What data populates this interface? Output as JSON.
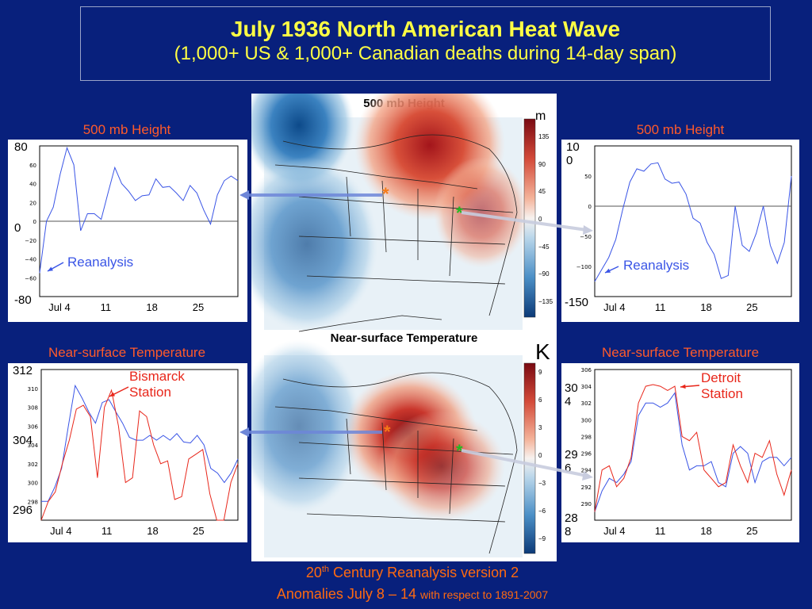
{
  "title": {
    "line1": "July 1936 North American Heat Wave",
    "line2": "(1,000+ US & 1,000+ Canadian deaths during 14-day span)"
  },
  "maps": {
    "top_title": "500 mb Height",
    "top_unit": "m",
    "top_colorbar_ticks": [
      "135",
      "90",
      "45",
      "0",
      "−45",
      "−90",
      "−135"
    ],
    "bottom_title": "Near-surface Temperature",
    "bottom_unit": "K",
    "bottom_colorbar_ticks": [
      "9",
      "6",
      "3",
      "0",
      "−3",
      "−6",
      "−9"
    ],
    "marker": "*"
  },
  "footer": {
    "line1_pre": "20",
    "line1_sup": "th",
    "line1_post": " Century Reanalysis version 2",
    "line2_main": "Anomalies July 8 – 14",
    "line2_small": "with respect to 1891-2007"
  },
  "colors": {
    "background": "#08207c",
    "title": "#ffff44",
    "label": "#ff5a2a",
    "reanalysis_line": "#3a55e6",
    "station_line": "#e8261a"
  },
  "chart_data": [
    {
      "id": "tl",
      "type": "line",
      "title": "500 mb Height",
      "xticks": [
        "Jul 4",
        "11",
        "18",
        "25"
      ],
      "yticks_small": [
        "60",
        "40",
        "20",
        "0",
        "−20",
        "−40",
        "−60"
      ],
      "ylabels_large": [
        "80",
        "0",
        "-80"
      ],
      "annotation": "Reanalysis",
      "ylim": [
        -80,
        80
      ],
      "series": [
        {
          "name": "Reanalysis",
          "values": [
            -55,
            0,
            15,
            50,
            78,
            60,
            -10,
            8,
            8,
            2,
            30,
            57,
            40,
            32,
            22,
            27,
            28,
            45,
            36,
            37,
            30,
            22,
            38,
            30,
            12,
            -3,
            28,
            43,
            48,
            43
          ]
        }
      ]
    },
    {
      "id": "tr",
      "type": "line",
      "title": "500 mb Height",
      "xticks": [
        "Jul 4",
        "11",
        "18",
        "25"
      ],
      "yticks_small": [
        "50",
        "0",
        "−50",
        "−100"
      ],
      "ylabels_large": [
        "10\n0",
        "-150"
      ],
      "annotation": "Reanalysis",
      "ylim": [
        -150,
        100
      ],
      "series": [
        {
          "name": "Reanalysis",
          "values": [
            -125,
            -105,
            -85,
            -55,
            -5,
            40,
            62,
            58,
            70,
            72,
            45,
            38,
            40,
            20,
            -20,
            -28,
            -60,
            -80,
            -120,
            -115,
            0,
            -65,
            -75,
            -45,
            0,
            -65,
            -95,
            -60,
            50
          ]
        }
      ]
    },
    {
      "id": "bl",
      "type": "line",
      "title": "Near-surface Temperature",
      "xticks": [
        "Jul 4",
        "11",
        "18",
        "25"
      ],
      "yticks_small": [
        "310",
        "308",
        "306",
        "304",
        "302",
        "300",
        "298"
      ],
      "ylabels_large": [
        "312",
        "304",
        "296"
      ],
      "annotation": "Bismarck Station",
      "ylim": [
        296,
        312
      ],
      "series": [
        {
          "name": "Reanalysis",
          "values": [
            298,
            298,
            299.5,
            301.5,
            306,
            310.3,
            309,
            307.5,
            306.3,
            308.5,
            308.8,
            307.5,
            306.3,
            304.8,
            304.5,
            304.5,
            305,
            304.5,
            305,
            304.5,
            305.2,
            304.3,
            304.2,
            305,
            304,
            301.5,
            301,
            300,
            301,
            302.5
          ]
        },
        {
          "name": "Bismarck Station",
          "values": [
            296,
            298,
            299,
            302,
            304.5,
            307.8,
            308.2,
            307,
            300.5,
            308,
            309.8,
            306,
            300,
            300.5,
            307.6,
            307,
            304,
            302,
            302.3,
            298.2,
            298.5,
            302.5,
            303,
            303.5,
            298.8,
            295.5,
            295.6,
            300,
            302
          ]
        }
      ]
    },
    {
      "id": "br",
      "type": "line",
      "title": "Near-surface Temperature",
      "xticks": [
        "Jul 4",
        "11",
        "18",
        "25"
      ],
      "yticks_small": [
        "306",
        "304",
        "302",
        "300",
        "298",
        "296",
        "294",
        "292",
        "290"
      ],
      "ylabels_large": [
        "30\n4",
        "29\n6",
        "28\n8"
      ],
      "annotation": "Detroit Station",
      "ylim": [
        288,
        306
      ],
      "series": [
        {
          "name": "Reanalysis",
          "values": [
            289,
            291.5,
            293,
            292.5,
            293.5,
            295,
            300.5,
            302,
            302,
            301.5,
            302,
            303.2,
            297,
            294,
            294.5,
            294.5,
            295,
            292.5,
            292,
            296,
            296.8,
            296,
            292.5,
            295,
            295.5,
            295.5,
            294.5,
            295.5
          ]
        },
        {
          "name": "Detroit Station",
          "values": [
            289,
            294,
            294.5,
            292,
            293,
            295.5,
            302,
            304,
            304.2,
            304,
            303.5,
            304,
            298,
            297.5,
            298.5,
            294,
            293,
            292,
            292.5,
            297,
            294.5,
            292.5,
            296,
            295.5,
            297.5,
            293.5,
            291,
            294
          ]
        }
      ]
    }
  ]
}
